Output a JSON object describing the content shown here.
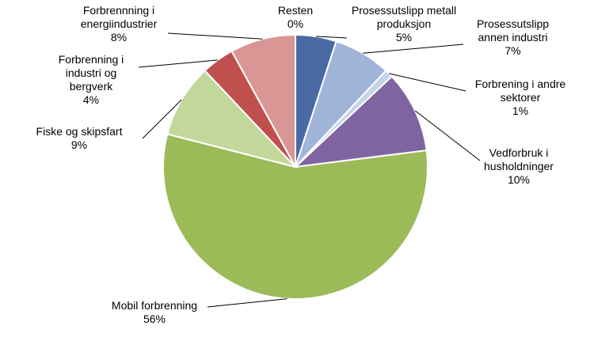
{
  "chart_data": {
    "type": "pie",
    "categories": [
      "Resten",
      "Prosessutslipp metall produksjon",
      "Prosessutslipp annen industri",
      "Forbrening i andre sektorer",
      "Vedforbruk i husholdninger",
      "Mobil forbrenning",
      "Fiske og skipsfart",
      "Forbrenning i industri og bergverk",
      "Forbrennning i energiindustrier"
    ],
    "values": [
      0,
      5,
      7,
      1,
      10,
      56,
      9,
      4,
      8
    ],
    "value_labels": [
      "0%",
      "5%",
      "7%",
      "1%",
      "10%",
      "56%",
      "9%",
      "4%",
      "8%"
    ],
    "colors": [
      "#ffffff",
      "#4a6aa5",
      "#a0b4d8",
      "#c6d4ea",
      "#8064a2",
      "#9bbb59",
      "#c4d79b",
      "#c0504d",
      "#d99694"
    ]
  }
}
